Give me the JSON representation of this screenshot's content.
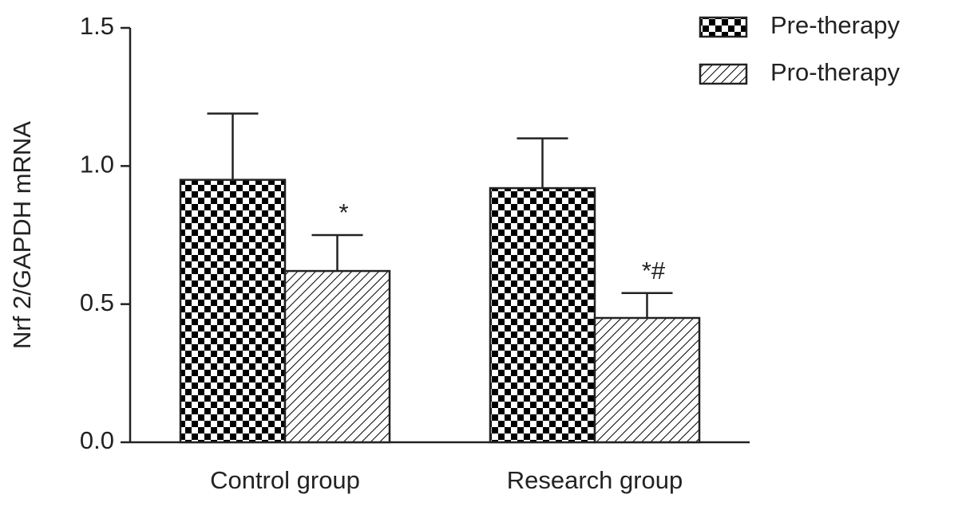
{
  "chart_data": {
    "type": "bar",
    "y_label": "Nrf 2/GAPDH mRNA",
    "categories": [
      "Control group",
      "Research group"
    ],
    "series": [
      {
        "name": "Pre-therapy",
        "color": "#000000",
        "pattern": "checker",
        "values": [
          0.95,
          0.92
        ],
        "errors": [
          0.24,
          0.18
        ]
      },
      {
        "name": "Pro-therapy",
        "color": "#000000",
        "pattern": "hatch",
        "values": [
          0.62,
          0.45
        ],
        "errors": [
          0.13,
          0.09
        ],
        "annotations": [
          "*",
          "*#"
        ]
      }
    ],
    "ylim": [
      0,
      1.5
    ],
    "yticks": [
      {
        "value": 0,
        "label": "0.0"
      },
      {
        "value": 0.5,
        "label": "0.5"
      },
      {
        "value": 1,
        "label": "1.0"
      },
      {
        "value": 1.5,
        "label": "1.5"
      }
    ],
    "legend": "top-right"
  }
}
